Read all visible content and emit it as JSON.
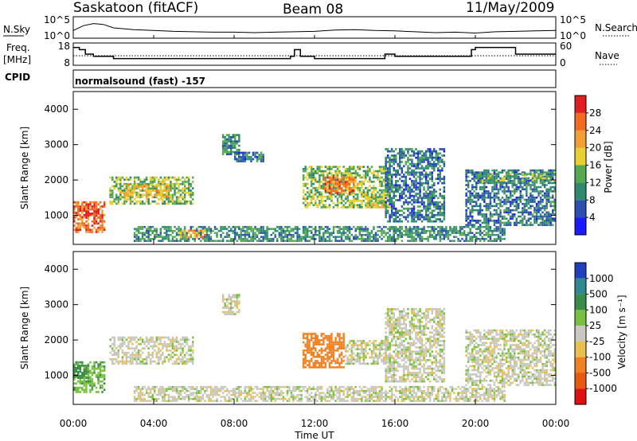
{
  "header": {
    "radar": "Saskatoon (fitACF)",
    "beam": "Beam 08",
    "date": "11/May/2009"
  },
  "strip_labels": {
    "nsky": "N.Sky",
    "nsearch": "N.Search",
    "freq_line1": "Freq.",
    "freq_line2": "[MHz]",
    "nave": "Nave",
    "cpid": "CPID",
    "cpid_value": "normalsound (fast) -157"
  },
  "strip_ticks": {
    "noise_left_top": "10^5",
    "noise_left_bottom": "10^0",
    "noise_right_top": "10^5",
    "noise_right_bottom": "10^0",
    "freq_top": "18",
    "freq_bottom": "8",
    "nave_top": "60",
    "nave_bottom": "0"
  },
  "axes": {
    "ylabel": "Slant Range [km]",
    "xlabel": "Time UT",
    "xticks": [
      "00:00",
      "04:00",
      "08:00",
      "12:00",
      "16:00",
      "20:00",
      "00:00"
    ],
    "yticks": [
      "1000",
      "2000",
      "3000",
      "4000"
    ],
    "xlim_hours": [
      0,
      24
    ],
    "ylim_km": [
      180,
      4500
    ]
  },
  "colorbars": {
    "power": {
      "label": "Power [dB]",
      "ticks": [
        "4",
        "8",
        "12",
        "16",
        "20",
        "24",
        "28"
      ],
      "colors": [
        "#1a1aff",
        "#2a4fb0",
        "#2f8a70",
        "#54a850",
        "#e8d030",
        "#f0a030",
        "#f06a20",
        "#e02020"
      ]
    },
    "velocity": {
      "label": "Velocity [m s⁻¹]",
      "ticks": [
        "1000",
        "500",
        "100",
        "25",
        "-25",
        "-100",
        "-500",
        "-1000"
      ],
      "colors": [
        "#2040c0",
        "#2f8a90",
        "#3a8c4a",
        "#78c040",
        "#c8c8c0",
        "#e8c050",
        "#f08020",
        "#e85a10",
        "#e01010"
      ]
    }
  },
  "chart_data": [
    {
      "type": "line",
      "name": "N.Sky / N.Search noise",
      "x_hours": [
        0,
        0.5,
        1,
        1.5,
        2,
        3,
        4,
        5,
        6,
        7,
        8,
        9,
        10,
        11,
        12,
        13,
        14,
        15,
        16,
        17,
        18,
        19,
        20,
        21,
        22,
        23,
        24
      ],
      "y_log10": [
        1.8,
        2.9,
        3.4,
        3.2,
        2.4,
        2.0,
        1.8,
        1.6,
        1.5,
        1.4,
        1.4,
        1.3,
        1.4,
        1.5,
        1.6,
        1.9,
        2.0,
        1.8,
        1.7,
        1.5,
        1.3,
        1.4,
        1.2,
        1.5,
        1.6,
        1.7,
        1.8
      ]
    },
    {
      "type": "line",
      "name": "Freq.",
      "ylim": [
        8,
        18
      ],
      "x_hours": [
        0,
        0.3,
        0.6,
        1.0,
        1.5,
        2.0,
        3.0,
        4.0,
        6.0,
        8.0,
        9.5,
        10.0,
        10.8,
        11.0,
        11.3,
        12.0,
        15.0,
        15.5,
        16.0,
        19.5,
        19.8,
        20.0,
        22.0,
        24.0
      ],
      "y": [
        16,
        15,
        13,
        12,
        12,
        11,
        11,
        11,
        11,
        11,
        11,
        11,
        12,
        15,
        12,
        11,
        11,
        13,
        12,
        12,
        15,
        16,
        13,
        13
      ]
    },
    {
      "type": "heatmap",
      "name": "Power [dB]",
      "units": "dB",
      "zlim": [
        0,
        30
      ],
      "regions": [
        {
          "t0": 0.0,
          "t1": 1.6,
          "r0": 500,
          "r1": 1400,
          "value": 24
        },
        {
          "t0": 0.6,
          "t1": 1.3,
          "r0": 900,
          "r1": 1200,
          "value": 28
        },
        {
          "t0": 1.8,
          "t1": 6.0,
          "r0": 1300,
          "r1": 2100,
          "value": 14
        },
        {
          "t0": 2.5,
          "t1": 4.8,
          "r0": 1500,
          "r1": 1900,
          "value": 18
        },
        {
          "t0": 3.0,
          "t1": 21.5,
          "r0": 250,
          "r1": 700,
          "value": 10
        },
        {
          "t0": 5.2,
          "t1": 6.6,
          "r0": 350,
          "r1": 600,
          "value": 20
        },
        {
          "t0": 7.4,
          "t1": 8.3,
          "r0": 2700,
          "r1": 3300,
          "value": 10
        },
        {
          "t0": 8.0,
          "t1": 9.5,
          "r0": 2500,
          "r1": 2800,
          "value": 8
        },
        {
          "t0": 11.4,
          "t1": 15.8,
          "r0": 1200,
          "r1": 2400,
          "value": 14
        },
        {
          "t0": 12.4,
          "t1": 14.0,
          "r0": 1600,
          "r1": 2100,
          "value": 24
        },
        {
          "t0": 14.5,
          "t1": 15.8,
          "r0": 1200,
          "r1": 1600,
          "value": 16
        },
        {
          "t0": 15.5,
          "t1": 18.5,
          "r0": 800,
          "r1": 2900,
          "value": 8
        },
        {
          "t0": 19.5,
          "t1": 24.0,
          "r0": 700,
          "r1": 2300,
          "value": 8
        },
        {
          "t0": 20.0,
          "t1": 24.0,
          "r0": 1900,
          "r1": 2200,
          "value": 12
        }
      ]
    },
    {
      "type": "heatmap",
      "name": "Velocity [m s-1]",
      "units": "m/s",
      "zlim": [
        -1000,
        1000
      ],
      "regions": [
        {
          "t0": 0.0,
          "t1": 1.6,
          "r0": 500,
          "r1": 1400,
          "value": 80
        },
        {
          "t0": 0.0,
          "t1": 0.8,
          "r0": 900,
          "r1": 1300,
          "value": 300
        },
        {
          "t0": 1.8,
          "t1": 6.0,
          "r0": 1300,
          "r1": 2100,
          "value": 0
        },
        {
          "t0": 3.0,
          "t1": 21.5,
          "r0": 250,
          "r1": 700,
          "value": 0
        },
        {
          "t0": 7.4,
          "t1": 8.3,
          "r0": 2700,
          "r1": 3300,
          "value": 0
        },
        {
          "t0": 11.4,
          "t1": 13.5,
          "r0": 1200,
          "r1": 2200,
          "value": -300
        },
        {
          "t0": 13.5,
          "t1": 15.8,
          "r0": 1300,
          "r1": 2000,
          "value": 0
        },
        {
          "t0": 15.5,
          "t1": 18.5,
          "r0": 800,
          "r1": 2900,
          "value": 0
        },
        {
          "t0": 19.5,
          "t1": 24.0,
          "r0": 700,
          "r1": 2300,
          "value": 0
        }
      ]
    }
  ]
}
